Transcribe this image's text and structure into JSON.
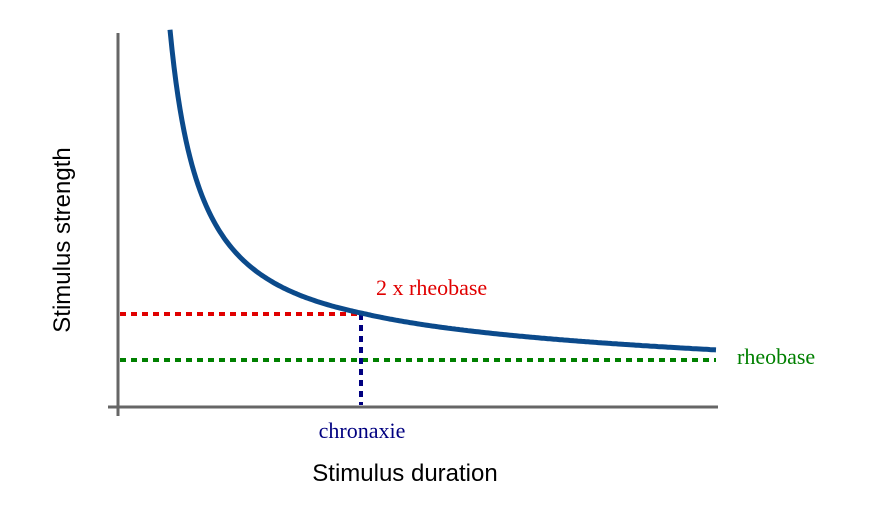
{
  "axes": {
    "y_label": "Stimulus strength",
    "x_label": "Stimulus duration"
  },
  "annotations": {
    "double_rheobase": "2 x rheobase",
    "rheobase": "rheobase",
    "chronaxie": "chronaxie"
  }
}
